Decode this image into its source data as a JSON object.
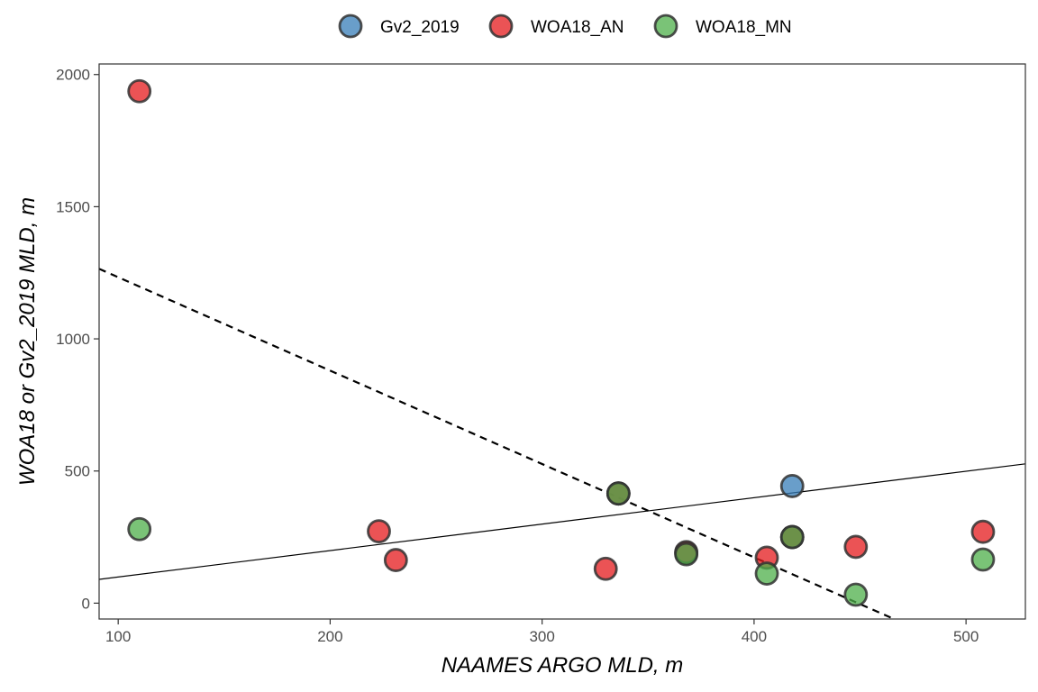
{
  "chart_data": {
    "type": "scatter",
    "xlabel": "NAAMES ARGO MLD, m",
    "ylabel": "WOA18 or Gv2_2019 MLD, m",
    "xlim": [
      91,
      528
    ],
    "ylim": [
      -60,
      2040
    ],
    "x_ticks": [
      100,
      200,
      300,
      400,
      500
    ],
    "y_ticks": [
      0,
      500,
      1000,
      1500,
      2000
    ],
    "grid": false,
    "legend_position": "top",
    "series": [
      {
        "name": "Gv2_2019",
        "color": "#377EB8",
        "points": [
          [
            336,
            415
          ],
          [
            368,
            190
          ],
          [
            418,
            443
          ],
          [
            418,
            250
          ]
        ]
      },
      {
        "name": "WOA18_AN",
        "color": "#E41A1C",
        "points": [
          [
            110,
            1937
          ],
          [
            223,
            272
          ],
          [
            231,
            163
          ],
          [
            330,
            130
          ],
          [
            336,
            415
          ],
          [
            368,
            193
          ],
          [
            406,
            172
          ],
          [
            418,
            250
          ],
          [
            448,
            213
          ],
          [
            508,
            270
          ]
        ]
      },
      {
        "name": "WOA18_MN",
        "color": "#4DAF4A",
        "points": [
          [
            110,
            280
          ],
          [
            336,
            415
          ],
          [
            368,
            185
          ],
          [
            406,
            112
          ],
          [
            418,
            250
          ],
          [
            448,
            32
          ],
          [
            508,
            165
          ]
        ]
      }
    ],
    "lines": [
      {
        "style": "solid",
        "x": [
          91,
          528
        ],
        "y": [
          90,
          527
        ]
      },
      {
        "style": "dashed",
        "x": [
          91,
          466
        ],
        "y": [
          1265,
          -60
        ]
      }
    ]
  }
}
